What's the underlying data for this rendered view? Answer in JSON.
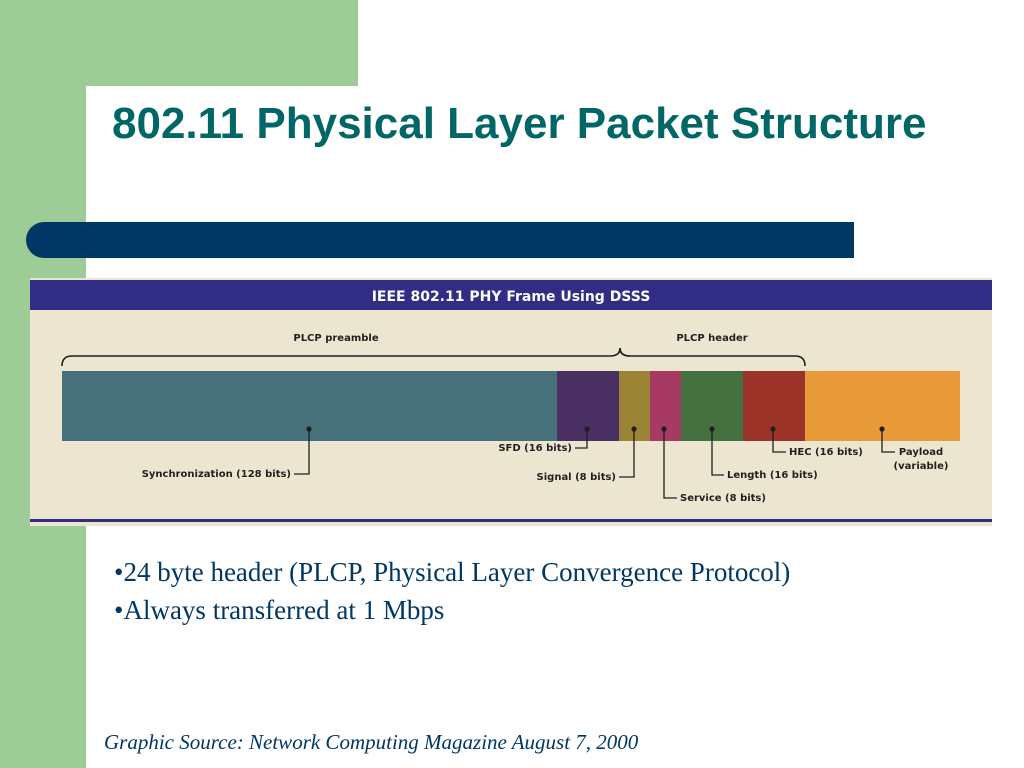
{
  "slide": {
    "title": "802.11 Physical Layer Packet Structure",
    "bullets": [
      "•24 byte header (PLCP, Physical Layer Convergence Protocol)",
      "•Always transferred at 1 Mbps"
    ],
    "source": "Graphic Source: Network Computing Magazine August 7, 2000"
  },
  "figure": {
    "header": "IEEE 802.11 PHY Frame Using DSSS",
    "groups": {
      "preamble": "PLCP preamble",
      "header": "PLCP header"
    },
    "fields": [
      {
        "id": "sync",
        "label": "Synchronization (128 bits)",
        "color": "#46717a"
      },
      {
        "id": "sfd",
        "label": "SFD (16 bits)",
        "color": "#4a2f62"
      },
      {
        "id": "signal",
        "label": "Signal (8 bits)",
        "color": "#9c8437"
      },
      {
        "id": "service",
        "label": "Service (8 bits)",
        "color": "#a63a62"
      },
      {
        "id": "length",
        "label": "Length (16 bits)",
        "color": "#45703f"
      },
      {
        "id": "hec",
        "label": "HEC (16 bits)",
        "color": "#9b3328"
      },
      {
        "id": "payload",
        "label": "Payload",
        "label2": "(variable)",
        "color": "#e79a37"
      }
    ],
    "colors": {
      "header_band": "#312c84",
      "background": "#ece6d1",
      "bottom_rule": "#312c84"
    }
  },
  "theme": {
    "green": "#9dcc96",
    "navy": "#003764",
    "teal": "#006666"
  }
}
